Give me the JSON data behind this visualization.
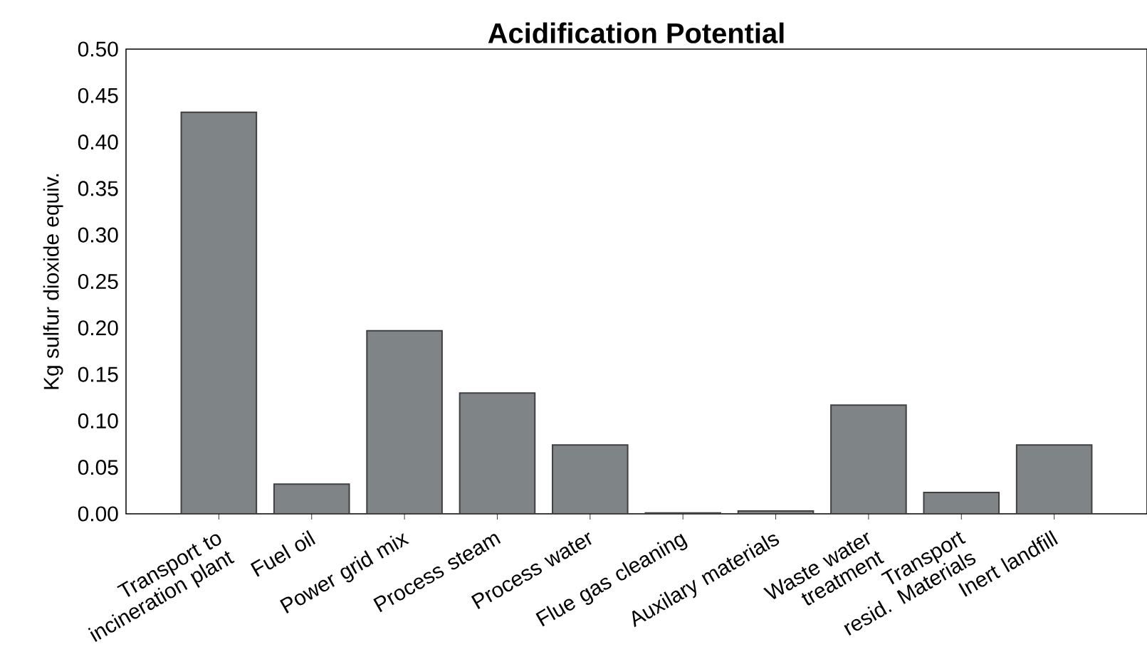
{
  "chart_data": {
    "type": "bar",
    "title": "Acidification Potential",
    "ylabel": "Kg sulfur dioxide equiv.",
    "categories": [
      "Transport to incineration plant",
      "Fuel oil",
      "Power grid mix",
      "Process steam",
      "Process water",
      "Flue gas cleaning",
      "Auxilary materials",
      "Waste water treatment",
      "Transport resid. Materials",
      "Inert landfill"
    ],
    "values": [
      0.432,
      0.032,
      0.197,
      0.13,
      0.074,
      0.001,
      0.003,
      0.117,
      0.023,
      0.074
    ],
    "color": "#7f8487",
    "ylim": [
      0,
      0.5
    ],
    "yticks": [
      {
        "value": 0,
        "label": "0.00"
      },
      {
        "value": 0.05,
        "label": "0.05"
      },
      {
        "value": 0.1,
        "label": "0.10"
      },
      {
        "value": 0.15,
        "label": "0.15"
      },
      {
        "value": 0.2,
        "label": "0.20"
      },
      {
        "value": 0.25,
        "label": "0.25"
      },
      {
        "value": 0.3,
        "label": "0.30"
      },
      {
        "value": 0.35,
        "label": "0.35"
      },
      {
        "value": 0.4,
        "label": "0.40"
      },
      {
        "value": 0.45,
        "label": "0.45"
      },
      {
        "value": 0.5,
        "label": "0.50"
      }
    ],
    "grid": false
  }
}
